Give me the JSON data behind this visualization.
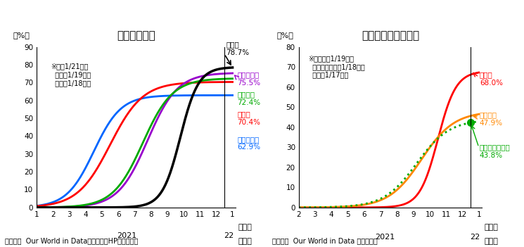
{
  "title1": "（１）先進国",
  "title2": "（２）アジア新興国",
  "footnote1": "（備考）  Our World in Data、首相官邸HPより作成。",
  "footnote2": "（備考）  Our World in Data より作成。",
  "note1": "※日は1/21時点\n  米独は1/19時点\n  仏英は1/18時点",
  "note2": "※インドは1/19時点\n  インドネシアは1/18時点\n  タイは1/17時点",
  "ylim1": [
    0,
    90
  ],
  "ylim2": [
    0,
    80
  ],
  "yticks1": [
    0,
    10,
    20,
    30,
    40,
    50,
    60,
    70,
    80,
    90
  ],
  "yticks2": [
    0,
    10,
    20,
    30,
    40,
    50,
    60,
    70,
    80
  ],
  "colors1": {
    "japan": "#000000",
    "france": "#9900cc",
    "germany": "#00aa00",
    "uk": "#ff0000",
    "usa": "#0066ff"
  },
  "colors2": {
    "thailand": "#ff0000",
    "india": "#ff8800",
    "indonesia": "#00aa00"
  }
}
